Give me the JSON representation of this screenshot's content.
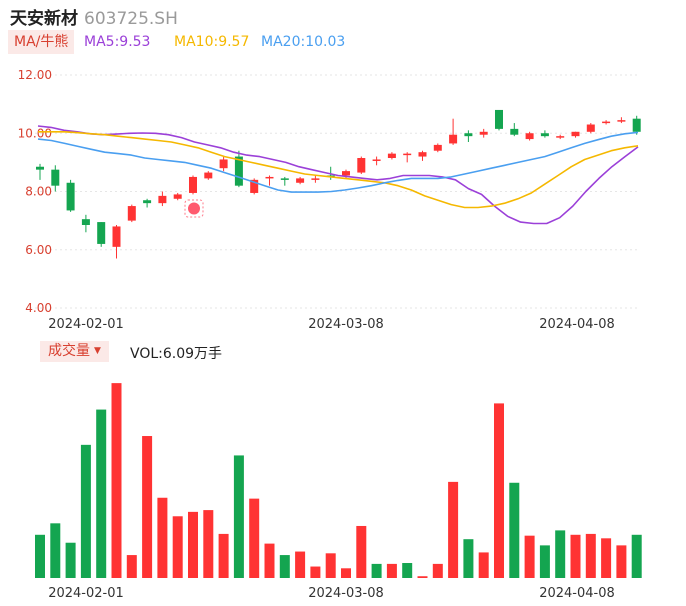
{
  "header": {
    "name": "天安新材",
    "code": "603725.SH"
  },
  "indicator_button": {
    "label": "MA/牛熊"
  },
  "ma_legend": [
    {
      "label": "MA5:9.53",
      "color": "#9b40d8"
    },
    {
      "label": "MA10:9.57",
      "color": "#f5b800"
    },
    {
      "label": "MA20:10.03",
      "color": "#4a9ff0"
    }
  ],
  "volume_button": {
    "label": "成交量"
  },
  "volume_info": {
    "label": "VOL:6.09万手"
  },
  "colors": {
    "up": "#ff3333",
    "down": "#14a550",
    "label_red": "#d84030"
  },
  "chart_data": [
    {
      "type": "candlestick",
      "y_ticks": [
        "12.00",
        "10.00",
        "8.00",
        "6.00",
        "4.00"
      ],
      "x_ticks": [
        "2024-02-01",
        "2024-03-08",
        "2024-04-08"
      ],
      "ylim": [
        4,
        12
      ],
      "grid": true,
      "candles": [
        {
          "o": 8.85,
          "c": 8.75,
          "h": 8.95,
          "l": 8.4
        },
        {
          "o": 8.75,
          "c": 8.2,
          "h": 8.9,
          "l": 8.0
        },
        {
          "o": 8.3,
          "c": 7.35,
          "h": 8.4,
          "l": 7.3
        },
        {
          "o": 7.05,
          "c": 6.85,
          "h": 7.2,
          "l": 6.6
        },
        {
          "o": 6.95,
          "c": 6.2,
          "h": 6.95,
          "l": 6.1
        },
        {
          "o": 6.1,
          "c": 6.8,
          "h": 6.85,
          "l": 5.7
        },
        {
          "o": 7.0,
          "c": 7.5,
          "h": 7.55,
          "l": 6.95
        },
        {
          "o": 7.7,
          "c": 7.6,
          "h": 7.75,
          "l": 7.45
        },
        {
          "o": 7.6,
          "c": 7.85,
          "h": 8.0,
          "l": 7.5
        },
        {
          "o": 7.75,
          "c": 7.9,
          "h": 7.95,
          "l": 7.7
        },
        {
          "o": 7.95,
          "c": 8.5,
          "h": 8.55,
          "l": 7.9
        },
        {
          "o": 8.45,
          "c": 8.65,
          "h": 8.7,
          "l": 8.4
        },
        {
          "o": 8.8,
          "c": 9.1,
          "h": 9.2,
          "l": 8.7
        },
        {
          "o": 9.2,
          "c": 8.2,
          "h": 9.4,
          "l": 8.15
        },
        {
          "o": 7.95,
          "c": 8.4,
          "h": 8.45,
          "l": 7.9
        },
        {
          "o": 8.45,
          "c": 8.5,
          "h": 8.55,
          "l": 8.2
        },
        {
          "o": 8.45,
          "c": 8.4,
          "h": 8.5,
          "l": 8.2
        },
        {
          "o": 8.3,
          "c": 8.45,
          "h": 8.5,
          "l": 8.25
        },
        {
          "o": 8.4,
          "c": 8.45,
          "h": 8.55,
          "l": 8.3
        },
        {
          "o": 8.55,
          "c": 8.5,
          "h": 8.85,
          "l": 8.4
        },
        {
          "o": 8.55,
          "c": 8.7,
          "h": 8.75,
          "l": 8.45
        },
        {
          "o": 8.65,
          "c": 9.15,
          "h": 9.2,
          "l": 8.6
        },
        {
          "o": 9.05,
          "c": 9.1,
          "h": 9.2,
          "l": 8.9
        },
        {
          "o": 9.15,
          "c": 9.3,
          "h": 9.35,
          "l": 9.1
        },
        {
          "o": 9.25,
          "c": 9.3,
          "h": 9.35,
          "l": 9.0
        },
        {
          "o": 9.2,
          "c": 9.35,
          "h": 9.4,
          "l": 9.05
        },
        {
          "o": 9.4,
          "c": 9.6,
          "h": 9.65,
          "l": 9.35
        },
        {
          "o": 9.65,
          "c": 9.95,
          "h": 10.5,
          "l": 9.6
        },
        {
          "o": 10.0,
          "c": 9.9,
          "h": 10.1,
          "l": 9.7
        },
        {
          "o": 9.95,
          "c": 10.05,
          "h": 10.15,
          "l": 9.85
        },
        {
          "o": 10.8,
          "c": 10.15,
          "h": 10.8,
          "l": 10.1
        },
        {
          "o": 10.15,
          "c": 9.95,
          "h": 10.35,
          "l": 9.9
        },
        {
          "o": 9.8,
          "c": 10.0,
          "h": 10.05,
          "l": 9.75
        },
        {
          "o": 10.0,
          "c": 9.9,
          "h": 10.1,
          "l": 9.85
        },
        {
          "o": 9.85,
          "c": 9.9,
          "h": 9.95,
          "l": 9.8
        },
        {
          "o": 9.9,
          "c": 10.05,
          "h": 10.05,
          "l": 9.85
        },
        {
          "o": 10.05,
          "c": 10.3,
          "h": 10.35,
          "l": 10.0
        },
        {
          "o": 10.35,
          "c": 10.4,
          "h": 10.45,
          "l": 10.3
        },
        {
          "o": 10.4,
          "c": 10.45,
          "h": 10.55,
          "l": 10.35
        },
        {
          "o": 10.5,
          "c": 10.05,
          "h": 10.6,
          "l": 9.95
        }
      ],
      "series": [
        {
          "name": "MA5",
          "color": "#9b40d8",
          "values": [
            10.25,
            10.2,
            10.1,
            10.05,
            9.98,
            9.95,
            9.97,
            10.0,
            10.01,
            10.0,
            9.95,
            9.85,
            9.7,
            9.6,
            9.5,
            9.35,
            9.25,
            9.2,
            9.1,
            9.0,
            8.85,
            8.75,
            8.65,
            8.55,
            8.5,
            8.45,
            8.4,
            8.45,
            8.55,
            8.55,
            8.55,
            8.5,
            8.4,
            8.1,
            7.9,
            7.5,
            7.15,
            6.95,
            6.9,
            6.9,
            7.1,
            7.5,
            8.0,
            8.45,
            8.85,
            9.2,
            9.53
          ]
        },
        {
          "name": "MA10",
          "color": "#f5b800",
          "values": [
            10.05,
            10.05,
            10.05,
            10.02,
            9.98,
            9.95,
            9.9,
            9.85,
            9.8,
            9.75,
            9.7,
            9.6,
            9.5,
            9.35,
            9.2,
            9.1,
            9.0,
            8.9,
            8.8,
            8.7,
            8.6,
            8.55,
            8.5,
            8.45,
            8.4,
            8.35,
            8.3,
            8.2,
            8.05,
            7.85,
            7.7,
            7.55,
            7.45,
            7.45,
            7.5,
            7.6,
            7.75,
            7.95,
            8.25,
            8.55,
            8.85,
            9.1,
            9.25,
            9.4,
            9.5,
            9.57
          ]
        },
        {
          "name": "MA20",
          "color": "#4a9ff0",
          "values": [
            9.8,
            9.75,
            9.65,
            9.55,
            9.45,
            9.35,
            9.3,
            9.25,
            9.15,
            9.1,
            9.05,
            9.0,
            8.9,
            8.8,
            8.65,
            8.5,
            8.35,
            8.2,
            8.05,
            7.98,
            7.98,
            7.98,
            8.0,
            8.05,
            8.12,
            8.2,
            8.3,
            8.38,
            8.45,
            8.45,
            8.45,
            8.5,
            8.6,
            8.7,
            8.8,
            8.9,
            9.0,
            9.1,
            9.2,
            9.35,
            9.5,
            9.65,
            9.78,
            9.9,
            9.98,
            10.03
          ]
        }
      ]
    },
    {
      "type": "bar",
      "x_ticks": [
        "2024-02-01",
        "2024-03-08",
        "2024-04-08"
      ],
      "ylim": [
        0,
        11.0
      ],
      "values": [
        2.45,
        3.1,
        2.0,
        7.55,
        9.55,
        11.05,
        1.3,
        8.05,
        4.55,
        3.5,
        3.75,
        3.85,
        2.5,
        6.95,
        4.5,
        1.95,
        1.3,
        1.5,
        0.65,
        1.4,
        0.55,
        2.95,
        0.8,
        0.8,
        0.85,
        0.1,
        0.8,
        5.45,
        2.2,
        1.45,
        9.9,
        5.4,
        2.4,
        1.85,
        2.7,
        2.45,
        2.5,
        2.25,
        1.85,
        2.45
      ],
      "directions": [
        "down",
        "down",
        "down",
        "down",
        "down",
        "up",
        "up",
        "up",
        "up",
        "up",
        "up",
        "up",
        "up",
        "down",
        "up",
        "up",
        "down",
        "up",
        "up",
        "up",
        "up",
        "up",
        "down",
        "up",
        "down",
        "up",
        "up",
        "up",
        "down",
        "up",
        "up",
        "down",
        "up",
        "down",
        "down",
        "up",
        "up",
        "up",
        "up",
        "down"
      ]
    }
  ]
}
